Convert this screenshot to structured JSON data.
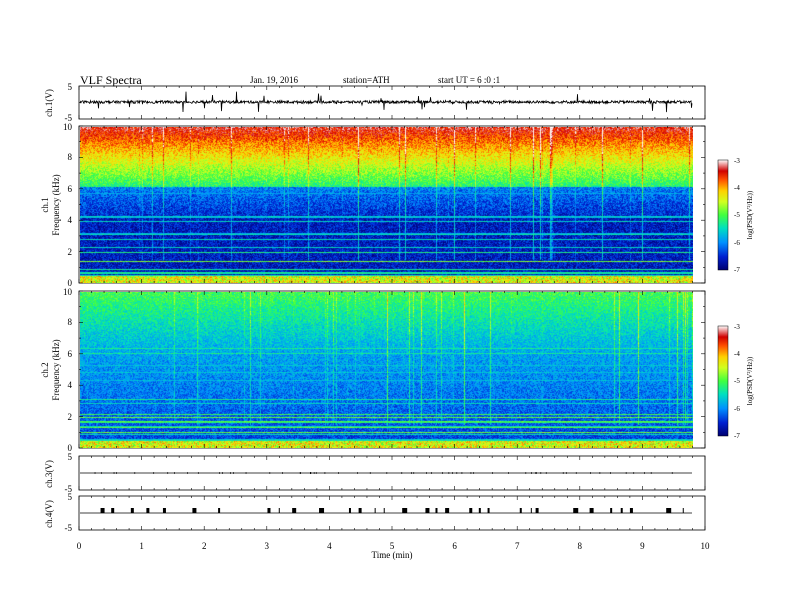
{
  "header": {
    "title": "VLF  Spectra",
    "date": "Jan. 19, 2016",
    "station": "station=ATH",
    "start": "start  UT =   6 :0  :1"
  },
  "chart_data": [
    {
      "type": "line",
      "panel": "ch1-waveform",
      "ylabel": "ch.1(V)",
      "ylim": [
        -5,
        5
      ],
      "ytick_labels": [
        "5",
        "-5"
      ],
      "baseline": 0,
      "x_data_end": 9.8
    },
    {
      "type": "heatmap",
      "panel": "ch1-spectrogram",
      "ylabel_channel": "ch.1",
      "ylabel": "Frequency  (kHz)",
      "ylim": [
        0,
        10
      ],
      "ytick_labels": [
        "0",
        "2",
        "4",
        "6",
        "8",
        "10"
      ],
      "x_data_end": 9.8,
      "colorbar": {
        "label": "log(PSD(V²/Hz))",
        "range": [
          -7,
          -3
        ],
        "tick_labels": [
          "-3",
          "-4",
          "-5",
          "-6",
          "-7"
        ]
      }
    },
    {
      "type": "heatmap",
      "panel": "ch2-spectrogram",
      "ylabel_channel": "ch.2",
      "ylabel": "Frequency  (kHz)",
      "ylim": [
        0,
        10
      ],
      "ytick_labels": [
        "0",
        "2",
        "4",
        "6",
        "8",
        "10"
      ],
      "x_data_end": 9.8,
      "colorbar": {
        "label": "log(PSD(V²/Hz))",
        "range": [
          -7,
          -3
        ],
        "tick_labels": [
          "-3",
          "-4",
          "-5",
          "-6",
          "-7"
        ]
      }
    },
    {
      "type": "line",
      "panel": "ch3-waveform",
      "ylabel": "ch.3(V)",
      "ylim": [
        -5,
        5
      ],
      "ytick_labels": [
        "5",
        "-5"
      ],
      "baseline": 0
    },
    {
      "type": "line",
      "panel": "ch4-waveform",
      "ylabel": "ch.4(V)",
      "ylim": [
        -5,
        5
      ],
      "ytick_labels": [
        "5",
        "-5"
      ],
      "baseline": 0
    }
  ],
  "xaxis": {
    "label": "Time  (min)",
    "range": [
      0,
      10
    ],
    "tick_labels": [
      "0",
      "1",
      "2",
      "3",
      "4",
      "5",
      "6",
      "7",
      "8",
      "9",
      "10"
    ]
  },
  "colormap": [
    "#000070",
    "#0020d0",
    "#0090ff",
    "#00e0c0",
    "#40ff40",
    "#d0ff20",
    "#ffd000",
    "#ff5000",
    "#d00000",
    "#ffffff"
  ]
}
